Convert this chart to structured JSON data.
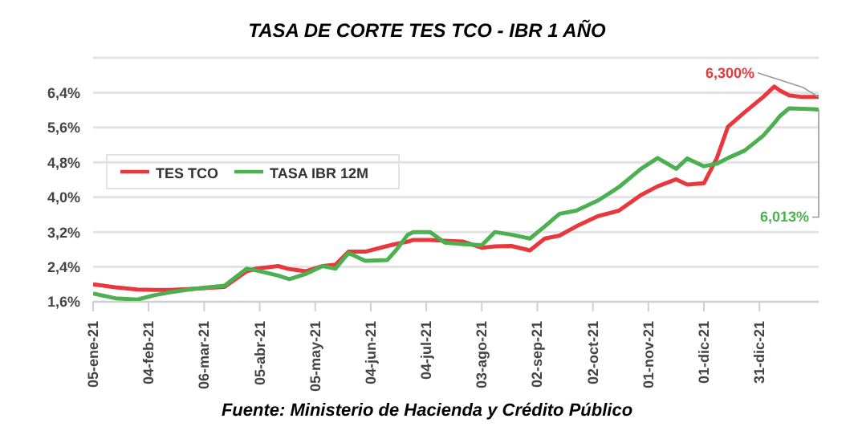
{
  "chart_data": {
    "type": "line",
    "title": "TASA DE CORTE TES TCO - IBR 1 AÑO",
    "x": [
      "2021-01-05",
      "2021-01-17",
      "2021-01-29",
      "2021-02-07",
      "2021-02-16",
      "2021-03-01",
      "2021-03-17",
      "2021-03-29",
      "2021-04-03",
      "2021-04-15",
      "2021-04-21",
      "2021-04-30",
      "2021-05-09",
      "2021-05-16",
      "2021-05-23",
      "2021-06-01",
      "2021-06-13",
      "2021-06-18",
      "2021-06-24",
      "2021-06-27",
      "2021-07-06",
      "2021-07-14",
      "2021-07-24",
      "2021-08-03",
      "2021-08-10",
      "2021-08-19",
      "2021-08-29",
      "2021-09-06",
      "2021-09-14",
      "2021-09-23",
      "2021-10-05",
      "2021-10-16",
      "2021-10-28",
      "2021-11-06",
      "2021-11-16",
      "2021-11-22",
      "2021-12-01",
      "2021-12-08",
      "2021-12-14",
      "2021-12-23",
      "2022-01-02",
      "2022-01-08",
      "2022-01-11",
      "2022-01-16",
      "2022-01-23",
      "2022-02-01"
    ],
    "series": [
      {
        "name": "TES TCO",
        "color": "#e8383d",
        "values": [
          2.0,
          1.93,
          1.88,
          1.87,
          1.87,
          1.9,
          1.94,
          2.3,
          2.36,
          2.42,
          2.35,
          2.3,
          2.42,
          2.45,
          2.75,
          2.75,
          2.88,
          2.93,
          2.98,
          3.02,
          3.02,
          3.0,
          2.98,
          2.84,
          2.87,
          2.88,
          2.78,
          3.05,
          3.12,
          3.33,
          3.57,
          3.69,
          4.05,
          4.25,
          4.41,
          4.29,
          4.32,
          4.9,
          5.62,
          5.95,
          6.3,
          6.54,
          6.45,
          6.34,
          6.3,
          6.3
        ]
      },
      {
        "name": "TASA IBR 12M",
        "color": "#4cb050",
        "values": [
          1.79,
          1.68,
          1.65,
          1.75,
          1.82,
          1.9,
          1.97,
          2.36,
          2.32,
          2.2,
          2.12,
          2.24,
          2.42,
          2.36,
          2.72,
          2.54,
          2.56,
          2.8,
          3.14,
          3.2,
          3.2,
          2.96,
          2.92,
          2.9,
          3.2,
          3.14,
          3.05,
          3.33,
          3.62,
          3.69,
          3.93,
          4.23,
          4.65,
          4.9,
          4.65,
          4.89,
          4.71,
          4.77,
          4.9,
          5.07,
          5.41,
          5.7,
          5.86,
          6.04,
          6.03,
          6.013
        ]
      }
    ],
    "xlim": [
      "2021-01-05",
      "2022-02-01"
    ],
    "xticks": [
      {
        "value": "2021-01-05",
        "label": "05-ene-21"
      },
      {
        "value": "2021-02-04",
        "label": "04-feb-21"
      },
      {
        "value": "2021-03-06",
        "label": "06-mar-21"
      },
      {
        "value": "2021-04-05",
        "label": "05-abr-21"
      },
      {
        "value": "2021-05-05",
        "label": "05-may-21"
      },
      {
        "value": "2021-06-04",
        "label": "04-jun-21"
      },
      {
        "value": "2021-07-04",
        "label": "04-jul-21"
      },
      {
        "value": "2021-08-03",
        "label": "03-ago-21"
      },
      {
        "value": "2021-09-02",
        "label": "02-sep-21"
      },
      {
        "value": "2021-10-02",
        "label": "02-oct-21"
      },
      {
        "value": "2021-11-01",
        "label": "01-nov-21"
      },
      {
        "value": "2021-12-01",
        "label": "01-dic-21"
      },
      {
        "value": "2021-12-31",
        "label": "31-dic-21"
      }
    ],
    "ylim": [
      1.6,
      7.2
    ],
    "yticks": [
      {
        "value": 1.6,
        "label": "1,6%"
      },
      {
        "value": 2.4,
        "label": "2,4%"
      },
      {
        "value": 3.2,
        "label": "3,2%"
      },
      {
        "value": 4.0,
        "label": "4,0%"
      },
      {
        "value": 4.8,
        "label": "4,8%"
      },
      {
        "value": 5.6,
        "label": "5,6%"
      },
      {
        "value": 6.4,
        "label": "6,4%"
      }
    ],
    "grid": "y",
    "legend": "left",
    "marker": "none",
    "line_style": "solid",
    "annotations": [
      {
        "text": "6,300%",
        "x": "2022-02-01",
        "y": 6.3
      },
      {
        "text": "6,013%",
        "x": "2022-02-01",
        "y": 6.013
      },
      "Fuente: Ministerio de Hacienda y Crédito Público"
    ]
  }
}
